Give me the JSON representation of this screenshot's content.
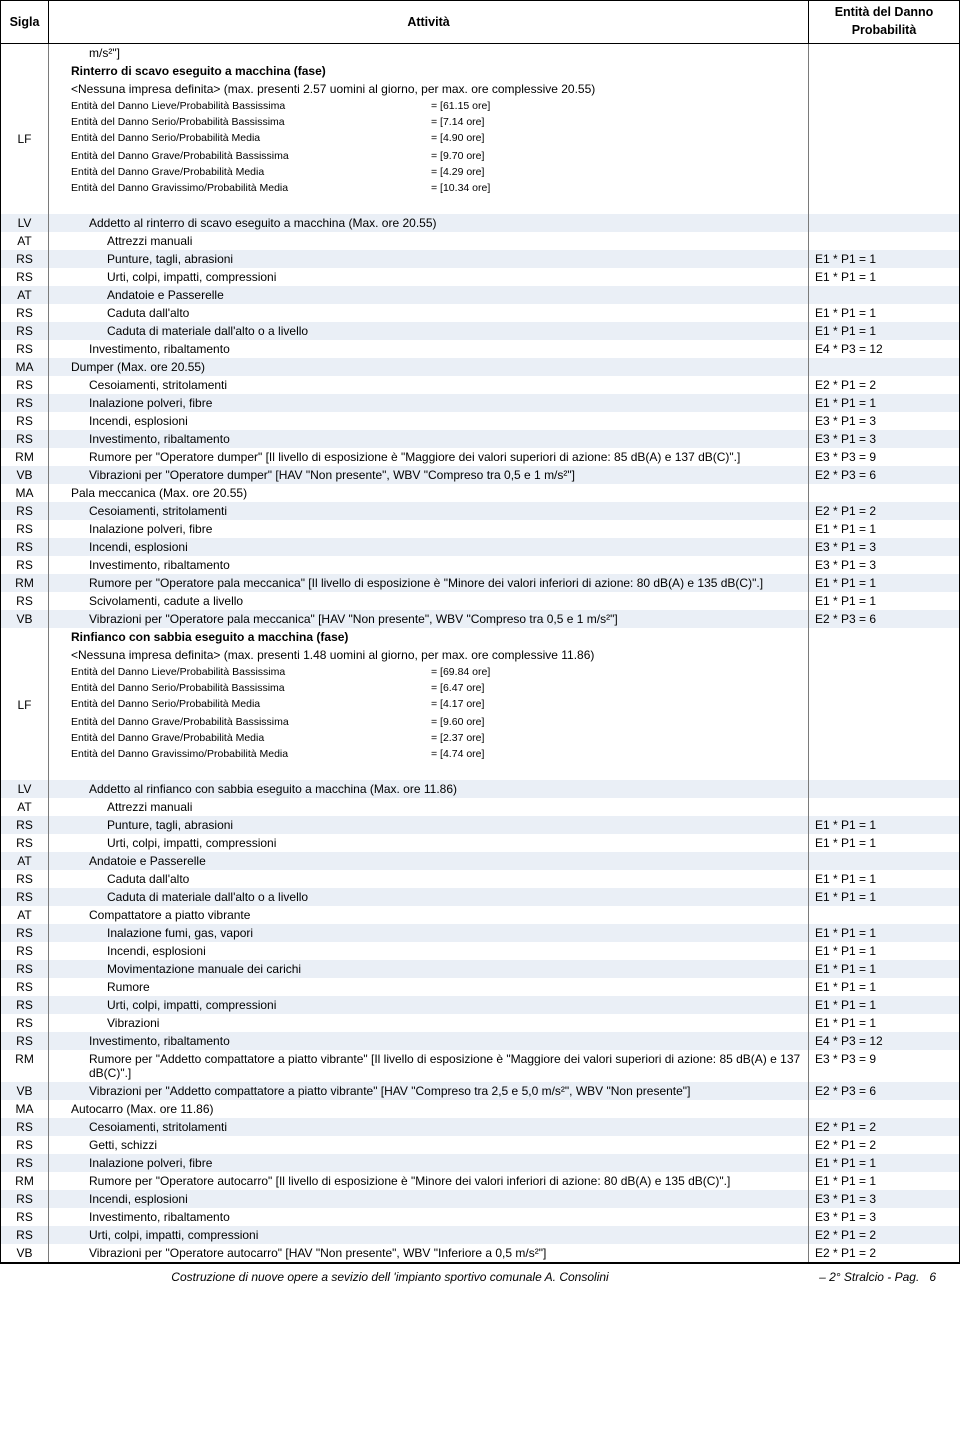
{
  "header": {
    "sigla": "Sigla",
    "attivita": "Attività",
    "danno_line1": "Entità del Danno",
    "danno_line2": "Probabilità"
  },
  "rows": [
    {
      "sigla": "",
      "indent": 2,
      "text": "m/s²\"]",
      "danno": "",
      "stripe": false
    },
    {
      "sigla": "",
      "indent": 1,
      "bold": true,
      "text": "Rinterro di scavo eseguito a macchina (fase)",
      "danno": "",
      "stripe": false
    },
    {
      "sigla": "",
      "indent": 1,
      "text": "<Nessuna impresa definita>  (max. presenti 2.57 uomini al giorno, per max. ore complessive 20.55)",
      "danno": "",
      "stripe": false
    },
    {
      "sigla": "",
      "indent": 1,
      "small": true,
      "lf": true,
      "label": "Entità del Danno Lieve/Probabilità Bassissima",
      "val": "= [61.15 ore]",
      "danno": "",
      "stripe": false
    },
    {
      "sigla": "",
      "indent": 1,
      "small": true,
      "lf": true,
      "label": "Entità del Danno Serio/Probabilità Bassissima",
      "val": "= [7.14 ore]",
      "danno": "",
      "stripe": false
    },
    {
      "sigla": "LF",
      "indent": 1,
      "small": true,
      "lf": true,
      "label": "Entità del Danno Serio/Probabilità Media",
      "val": "= [4.90 ore]",
      "danno": "",
      "stripe": false
    },
    {
      "sigla": "",
      "indent": 1,
      "small": true,
      "lf": true,
      "label": "Entità del Danno Grave/Probabilità Bassissima",
      "val": "= [9.70 ore]",
      "danno": "",
      "stripe": false
    },
    {
      "sigla": "",
      "indent": 1,
      "small": true,
      "lf": true,
      "label": "Entità del Danno Grave/Probabilità Media",
      "val": "= [4.29 ore]",
      "danno": "",
      "stripe": false
    },
    {
      "sigla": "",
      "indent": 1,
      "small": true,
      "lf": true,
      "label": "Entità del Danno Gravissimo/Probabilità Media",
      "val": "= [10.34 ore]",
      "danno": "",
      "stripe": false
    },
    {
      "sigla": "",
      "indent": 0,
      "text": " ",
      "danno": "",
      "stripe": false
    },
    {
      "sigla": "LV",
      "indent": 2,
      "text": "Addetto al rinterro di scavo eseguito a macchina  (Max. ore 20.55)",
      "danno": "",
      "stripe": true
    },
    {
      "sigla": "AT",
      "indent": 3,
      "text": "Attrezzi manuali",
      "danno": "",
      "stripe": false
    },
    {
      "sigla": "RS",
      "indent": 3,
      "text": "Punture, tagli, abrasioni",
      "danno": "E1 * P1 = 1",
      "stripe": true
    },
    {
      "sigla": "RS",
      "indent": 3,
      "text": "Urti, colpi, impatti, compressioni",
      "danno": "E1 * P1 = 1",
      "stripe": false
    },
    {
      "sigla": "AT",
      "indent": 3,
      "text": "Andatoie e Passerelle",
      "danno": "",
      "stripe": true
    },
    {
      "sigla": "RS",
      "indent": 3,
      "text": "Caduta dall'alto",
      "danno": "E1 * P1 = 1",
      "stripe": false
    },
    {
      "sigla": "RS",
      "indent": 3,
      "text": "Caduta di materiale dall'alto o a livello",
      "danno": "E1 * P1 = 1",
      "stripe": true
    },
    {
      "sigla": "RS",
      "indent": 2,
      "text": "Investimento, ribaltamento",
      "danno": "E4 * P3 = 12",
      "stripe": false
    },
    {
      "sigla": "MA",
      "indent": 1,
      "text": "Dumper  (Max. ore 20.55)",
      "danno": "",
      "stripe": true
    },
    {
      "sigla": "RS",
      "indent": 2,
      "text": "Cesoiamenti, stritolamenti",
      "danno": "E2 * P1 = 2",
      "stripe": false
    },
    {
      "sigla": "RS",
      "indent": 2,
      "text": "Inalazione polveri, fibre",
      "danno": "E1 * P1 = 1",
      "stripe": true
    },
    {
      "sigla": "RS",
      "indent": 2,
      "text": "Incendi, esplosioni",
      "danno": "E3 * P1 = 3",
      "stripe": false
    },
    {
      "sigla": "RS",
      "indent": 2,
      "text": "Investimento, ribaltamento",
      "danno": "E3 * P1 = 3",
      "stripe": true
    },
    {
      "sigla": "RM",
      "indent": 2,
      "text": "Rumore per \"Operatore dumper\" [Il livello di esposizione è \"Maggiore dei valori superiori di azione: 85 dB(A) e 137 dB(C)\".]",
      "danno": "E3 * P3 = 9",
      "stripe": false
    },
    {
      "sigla": "VB",
      "indent": 2,
      "text": "Vibrazioni per \"Operatore dumper\" [HAV \"Non presente\", WBV \"Compreso tra 0,5 e 1 m/s²\"]",
      "danno": "E2 * P3 = 6",
      "stripe": true
    },
    {
      "sigla": "MA",
      "indent": 1,
      "text": "Pala meccanica  (Max. ore 20.55)",
      "danno": "",
      "stripe": false
    },
    {
      "sigla": "RS",
      "indent": 2,
      "text": "Cesoiamenti, stritolamenti",
      "danno": "E2 * P1 = 2",
      "stripe": true
    },
    {
      "sigla": "RS",
      "indent": 2,
      "text": "Inalazione polveri, fibre",
      "danno": "E1 * P1 = 1",
      "stripe": false
    },
    {
      "sigla": "RS",
      "indent": 2,
      "text": "Incendi, esplosioni",
      "danno": "E3 * P1 = 3",
      "stripe": true
    },
    {
      "sigla": "RS",
      "indent": 2,
      "text": "Investimento, ribaltamento",
      "danno": "E3 * P1 = 3",
      "stripe": false
    },
    {
      "sigla": "RM",
      "indent": 2,
      "text": "Rumore per \"Operatore pala meccanica\" [Il livello di esposizione è \"Minore dei valori inferiori di azione: 80 dB(A) e 135 dB(C)\".]",
      "danno": "E1 * P1 = 1",
      "stripe": true
    },
    {
      "sigla": "RS",
      "indent": 2,
      "text": "Scivolamenti, cadute a livello",
      "danno": "E1 * P1 = 1",
      "stripe": false
    },
    {
      "sigla": "VB",
      "indent": 2,
      "text": "Vibrazioni per \"Operatore pala meccanica\" [HAV \"Non presente\", WBV \"Compreso tra 0,5 e 1 m/s²\"]",
      "danno": "E2 * P3 = 6",
      "stripe": true
    },
    {
      "sigla": "",
      "indent": 1,
      "bold": true,
      "text": "Rinfianco con sabbia eseguito a macchina (fase)",
      "danno": "",
      "stripe": false
    },
    {
      "sigla": "",
      "indent": 1,
      "text": "<Nessuna impresa definita>  (max. presenti 1.48 uomini al giorno, per max. ore complessive 11.86)",
      "danno": "",
      "stripe": false
    },
    {
      "sigla": "",
      "indent": 1,
      "small": true,
      "lf": true,
      "label": "Entità del Danno Lieve/Probabilità Bassissima",
      "val": "= [69.84 ore]",
      "danno": "",
      "stripe": false
    },
    {
      "sigla": "",
      "indent": 1,
      "small": true,
      "lf": true,
      "label": "Entità del Danno Serio/Probabilità Bassissima",
      "val": "= [6.47 ore]",
      "danno": "",
      "stripe": false
    },
    {
      "sigla": "LF",
      "indent": 1,
      "small": true,
      "lf": true,
      "label": "Entità del Danno Serio/Probabilità Media",
      "val": "= [4.17 ore]",
      "danno": "",
      "stripe": false
    },
    {
      "sigla": "",
      "indent": 1,
      "small": true,
      "lf": true,
      "label": "Entità del Danno Grave/Probabilità Bassissima",
      "val": "= [9.60 ore]",
      "danno": "",
      "stripe": false
    },
    {
      "sigla": "",
      "indent": 1,
      "small": true,
      "lf": true,
      "label": "Entità del Danno Grave/Probabilità Media",
      "val": "= [2.37 ore]",
      "danno": "",
      "stripe": false
    },
    {
      "sigla": "",
      "indent": 1,
      "small": true,
      "lf": true,
      "label": "Entità del Danno Gravissimo/Probabilità Media",
      "val": "= [4.74 ore]",
      "danno": "",
      "stripe": false
    },
    {
      "sigla": "",
      "indent": 0,
      "text": " ",
      "danno": "",
      "stripe": false
    },
    {
      "sigla": "LV",
      "indent": 2,
      "text": "Addetto al rinfianco con sabbia eseguito a macchina  (Max. ore 11.86)",
      "danno": "",
      "stripe": true
    },
    {
      "sigla": "AT",
      "indent": 3,
      "text": "Attrezzi manuali",
      "danno": "",
      "stripe": false
    },
    {
      "sigla": "RS",
      "indent": 3,
      "text": "Punture, tagli, abrasioni",
      "danno": "E1 * P1 = 1",
      "stripe": true
    },
    {
      "sigla": "RS",
      "indent": 3,
      "text": "Urti, colpi, impatti, compressioni",
      "danno": "E1 * P1 = 1",
      "stripe": false
    },
    {
      "sigla": "AT",
      "indent": 2,
      "text": "Andatoie e Passerelle",
      "danno": "",
      "stripe": true
    },
    {
      "sigla": "RS",
      "indent": 3,
      "text": "Caduta dall'alto",
      "danno": "E1 * P1 = 1",
      "stripe": false
    },
    {
      "sigla": "RS",
      "indent": 3,
      "text": "Caduta di materiale dall'alto o a livello",
      "danno": "E1 * P1 = 1",
      "stripe": true
    },
    {
      "sigla": "AT",
      "indent": 2,
      "text": "Compattatore a piatto vibrante",
      "danno": "",
      "stripe": false
    },
    {
      "sigla": "RS",
      "indent": 3,
      "text": "Inalazione fumi, gas, vapori",
      "danno": "E1 * P1 = 1",
      "stripe": true
    },
    {
      "sigla": "RS",
      "indent": 3,
      "text": "Incendi, esplosioni",
      "danno": "E1 * P1 = 1",
      "stripe": false
    },
    {
      "sigla": "RS",
      "indent": 3,
      "text": "Movimentazione manuale dei carichi",
      "danno": "E1 * P1 = 1",
      "stripe": true
    },
    {
      "sigla": "RS",
      "indent": 3,
      "text": "Rumore",
      "danno": "E1 * P1 = 1",
      "stripe": false
    },
    {
      "sigla": "RS",
      "indent": 3,
      "text": "Urti, colpi, impatti, compressioni",
      "danno": "E1 * P1 = 1",
      "stripe": true
    },
    {
      "sigla": "RS",
      "indent": 3,
      "text": "Vibrazioni",
      "danno": "E1 * P1 = 1",
      "stripe": false
    },
    {
      "sigla": "RS",
      "indent": 2,
      "text": "Investimento, ribaltamento",
      "danno": "E4 * P3 = 12",
      "stripe": true
    },
    {
      "sigla": "RM",
      "indent": 2,
      "text": "Rumore per \"Addetto compattatore a piatto vibrante\" [Il livello di esposizione è \"Maggiore dei valori superiori di azione: 85 dB(A) e 137 dB(C)\".]",
      "danno": "E3 * P3 = 9",
      "stripe": false
    },
    {
      "sigla": "VB",
      "indent": 2,
      "text": "Vibrazioni per \"Addetto compattatore a piatto vibrante\" [HAV \"Compreso tra 2,5 e 5,0 m/s²\", WBV \"Non presente\"]",
      "danno": "E2 * P3 = 6",
      "stripe": true
    },
    {
      "sigla": "MA",
      "indent": 1,
      "text": "Autocarro  (Max. ore 11.86)",
      "danno": "",
      "stripe": false
    },
    {
      "sigla": "RS",
      "indent": 2,
      "text": "Cesoiamenti, stritolamenti",
      "danno": "E2 * P1 = 2",
      "stripe": true
    },
    {
      "sigla": "RS",
      "indent": 2,
      "text": "Getti, schizzi",
      "danno": "E2 * P1 = 2",
      "stripe": false
    },
    {
      "sigla": "RS",
      "indent": 2,
      "text": "Inalazione polveri, fibre",
      "danno": "E1 * P1 = 1",
      "stripe": true
    },
    {
      "sigla": "RM",
      "indent": 2,
      "text": "Rumore per \"Operatore autocarro\" [Il livello di esposizione è \"Minore dei valori inferiori di azione: 80 dB(A) e 135 dB(C)\".]",
      "danno": "E1 * P1 = 1",
      "stripe": false
    },
    {
      "sigla": "RS",
      "indent": 2,
      "text": "Incendi, esplosioni",
      "danno": "E3 * P1 = 3",
      "stripe": true
    },
    {
      "sigla": "RS",
      "indent": 2,
      "text": "Investimento, ribaltamento",
      "danno": "E3 * P1 = 3",
      "stripe": false
    },
    {
      "sigla": "RS",
      "indent": 2,
      "text": "Urti, colpi, impatti, compressioni",
      "danno": "E2 * P1 = 2",
      "stripe": true
    },
    {
      "sigla": "VB",
      "indent": 2,
      "text": "Vibrazioni per \"Operatore autocarro\" [HAV \"Non presente\", WBV \"Inferiore a 0,5 m/s²\"]",
      "danno": "E2 * P1 = 2",
      "stripe": false
    }
  ],
  "footer": {
    "left": "Costruzione di nuove opere a sevizio dell   'impianto sportivo comunale A. Consolini",
    "right": "– 2° Stralcio - Pag.",
    "page": "6"
  }
}
